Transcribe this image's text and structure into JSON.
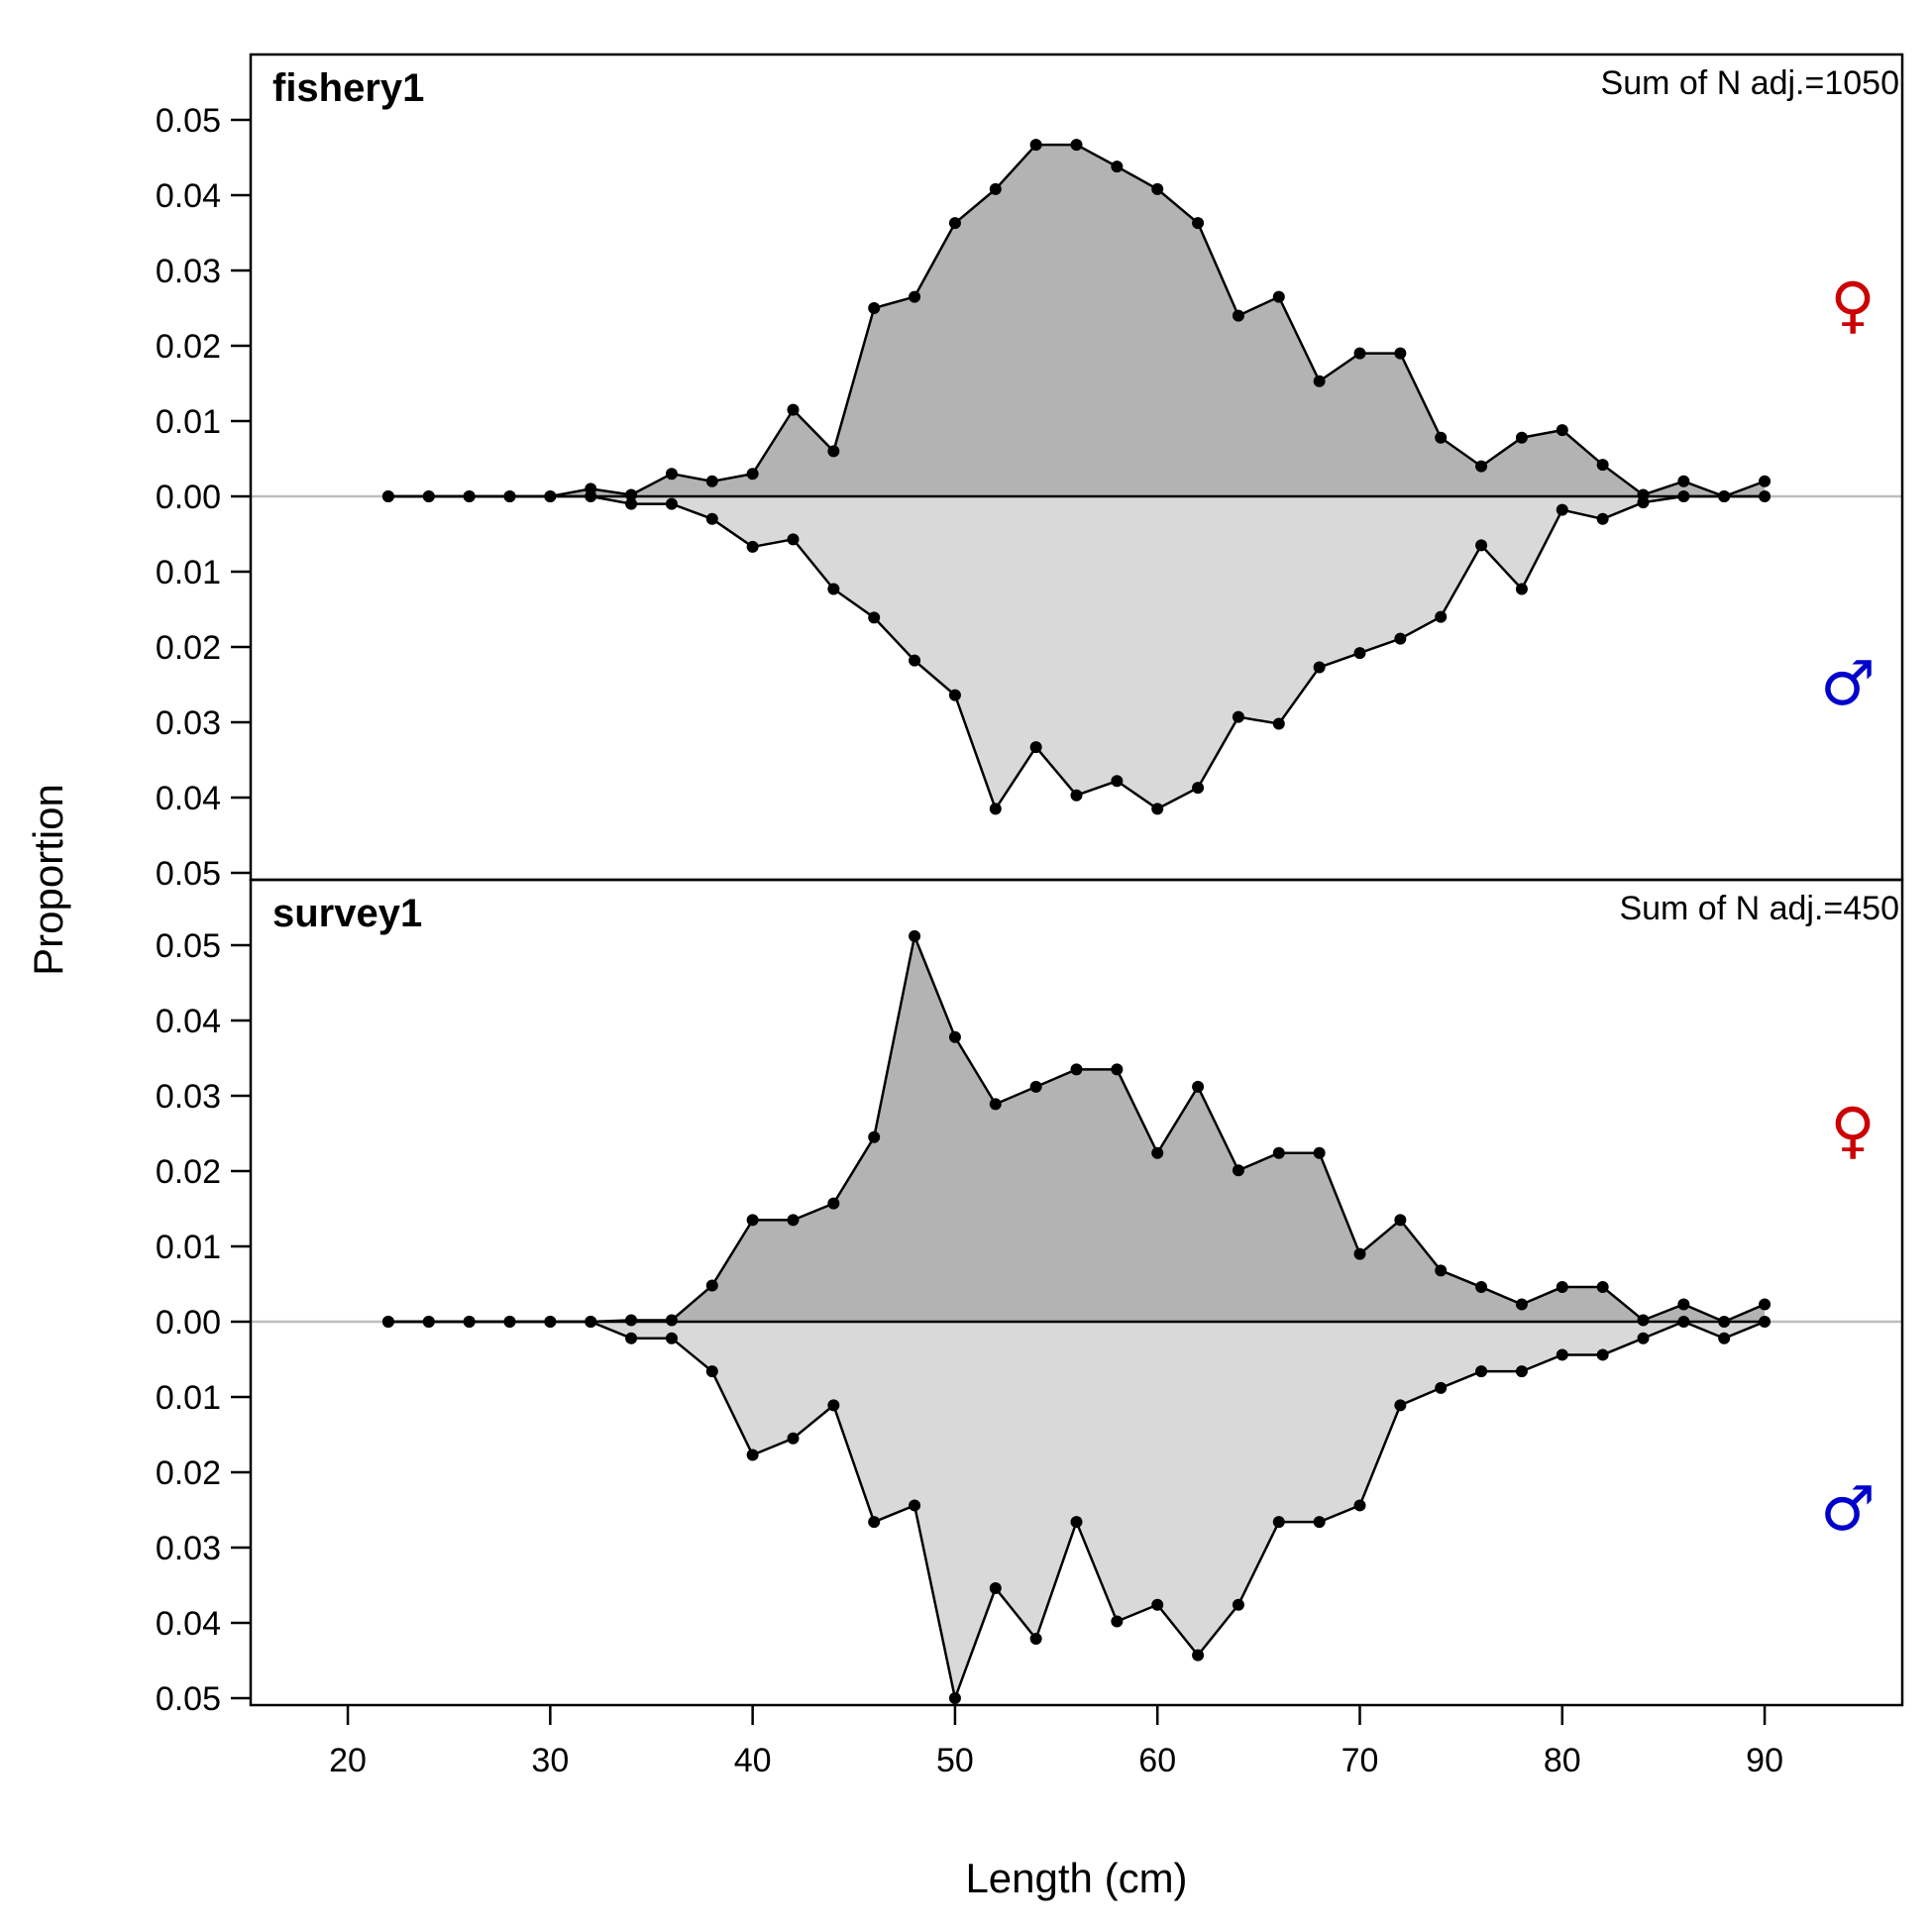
{
  "chart_data": {
    "type": "area",
    "xlabel": "Length (cm)",
    "ylabel": "Proportion",
    "xlim": [
      15.2,
      96.8
    ],
    "x_ticks": [
      "20",
      "30",
      "40",
      "50",
      "60",
      "70",
      "80",
      "90"
    ],
    "y_ticks": [
      "0.00",
      "0.01",
      "0.02",
      "0.03",
      "0.04",
      "0.05"
    ],
    "panel_ylim": [
      -0.05,
      0.0505
    ],
    "female_symbol": "♀",
    "male_symbol": "♂",
    "colors": {
      "female_fill": "#b3b3b3",
      "male_fill": "#d9d9d9",
      "line": "#000000",
      "female_symbol": "#cc0000",
      "male_symbol": "#0000cc",
      "zero_line": "#bebebe"
    },
    "x": [
      22,
      24,
      26,
      28,
      30,
      32,
      34,
      36,
      38,
      40,
      42,
      44,
      46,
      48,
      50,
      52,
      54,
      56,
      58,
      60,
      62,
      64,
      66,
      68,
      70,
      72,
      74,
      76,
      78,
      80,
      82,
      84,
      86,
      88,
      90
    ],
    "panels": [
      {
        "title": "fishery1",
        "annotation": "Sum of N adj.=1050",
        "series": [
          {
            "name": "♀",
            "values": [
              0,
              0,
              0,
              0,
              0,
              0.001,
              0.0002,
              0.003,
              0.002,
              0.003,
              0.0115,
              0.006,
              0.025,
              0.0265,
              0.0363,
              0.0408,
              0.0467,
              0.0467,
              0.0438,
              0.0408,
              0.0363,
              0.024,
              0.0265,
              0.0153,
              0.019,
              0.019,
              0.0078,
              0.004,
              0.0078,
              0.0088,
              0.0042,
              0.0002,
              0.002,
              0,
              0.002
            ]
          },
          {
            "name": "♂",
            "values": [
              0,
              0,
              0,
              0,
              0,
              0,
              0.001,
              0.001,
              0.003,
              0.0067,
              0.0057,
              0.0123,
              0.0161,
              0.0218,
              0.0264,
              0.0415,
              0.0333,
              0.0397,
              0.0378,
              0.0415,
              0.0387,
              0.0293,
              0.0302,
              0.0227,
              0.0208,
              0.0189,
              0.016,
              0.0065,
              0.0123,
              0.0018,
              0.003,
              0.0008,
              0,
              0,
              0
            ]
          }
        ]
      },
      {
        "title": "survey1",
        "annotation": "Sum of N adj.=450",
        "series": [
          {
            "name": "♀",
            "values": [
              0,
              0,
              0,
              0,
              0,
              0,
              0.0002,
              0.0002,
              0.0048,
              0.0135,
              0.0135,
              0.0157,
              0.0245,
              0.0512,
              0.0378,
              0.0289,
              0.0312,
              0.0335,
              0.0335,
              0.0224,
              0.0312,
              0.0201,
              0.0224,
              0.0224,
              0.009,
              0.0135,
              0.0068,
              0.0046,
              0.0023,
              0.0046,
              0.0046,
              0.0002,
              0.0023,
              0,
              0.0023
            ]
          },
          {
            "name": "♂",
            "values": [
              0,
              0,
              0,
              0,
              0,
              0,
              0.0022,
              0.0022,
              0.0066,
              0.0177,
              0.0155,
              0.0111,
              0.0266,
              0.0244,
              0.05,
              0.0354,
              0.0421,
              0.0266,
              0.0398,
              0.0376,
              0.0443,
              0.0376,
              0.0266,
              0.0266,
              0.0244,
              0.0111,
              0.0088,
              0.0066,
              0.0066,
              0.0044,
              0.0044,
              0.0022,
              0,
              0.0022,
              0
            ]
          }
        ]
      }
    ]
  }
}
